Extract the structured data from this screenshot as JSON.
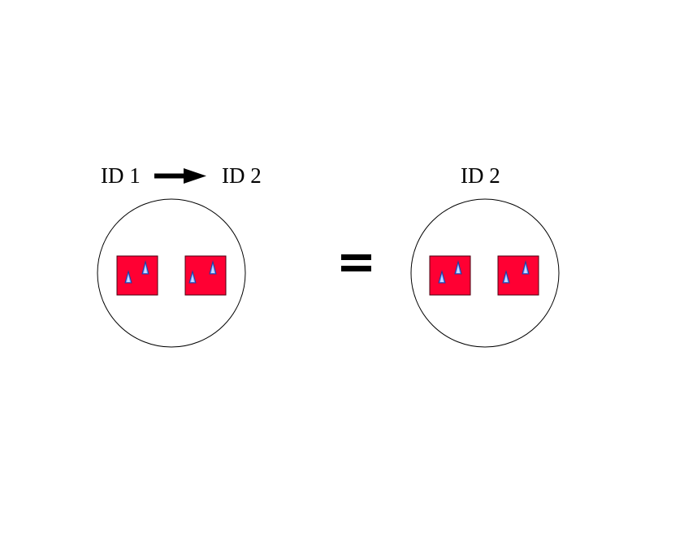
{
  "left_group": {
    "source_label": "ID 1",
    "target_label": "ID 2",
    "arrow_icon": "right-arrow-icon"
  },
  "equals_icon": "equals-sign-icon",
  "right_group": {
    "label": "ID 2"
  },
  "colors": {
    "square_fill": "#ff0033",
    "triangle_fill": "#6699ff",
    "triangle_highlight": "#ccddff",
    "outline": "#000000"
  }
}
